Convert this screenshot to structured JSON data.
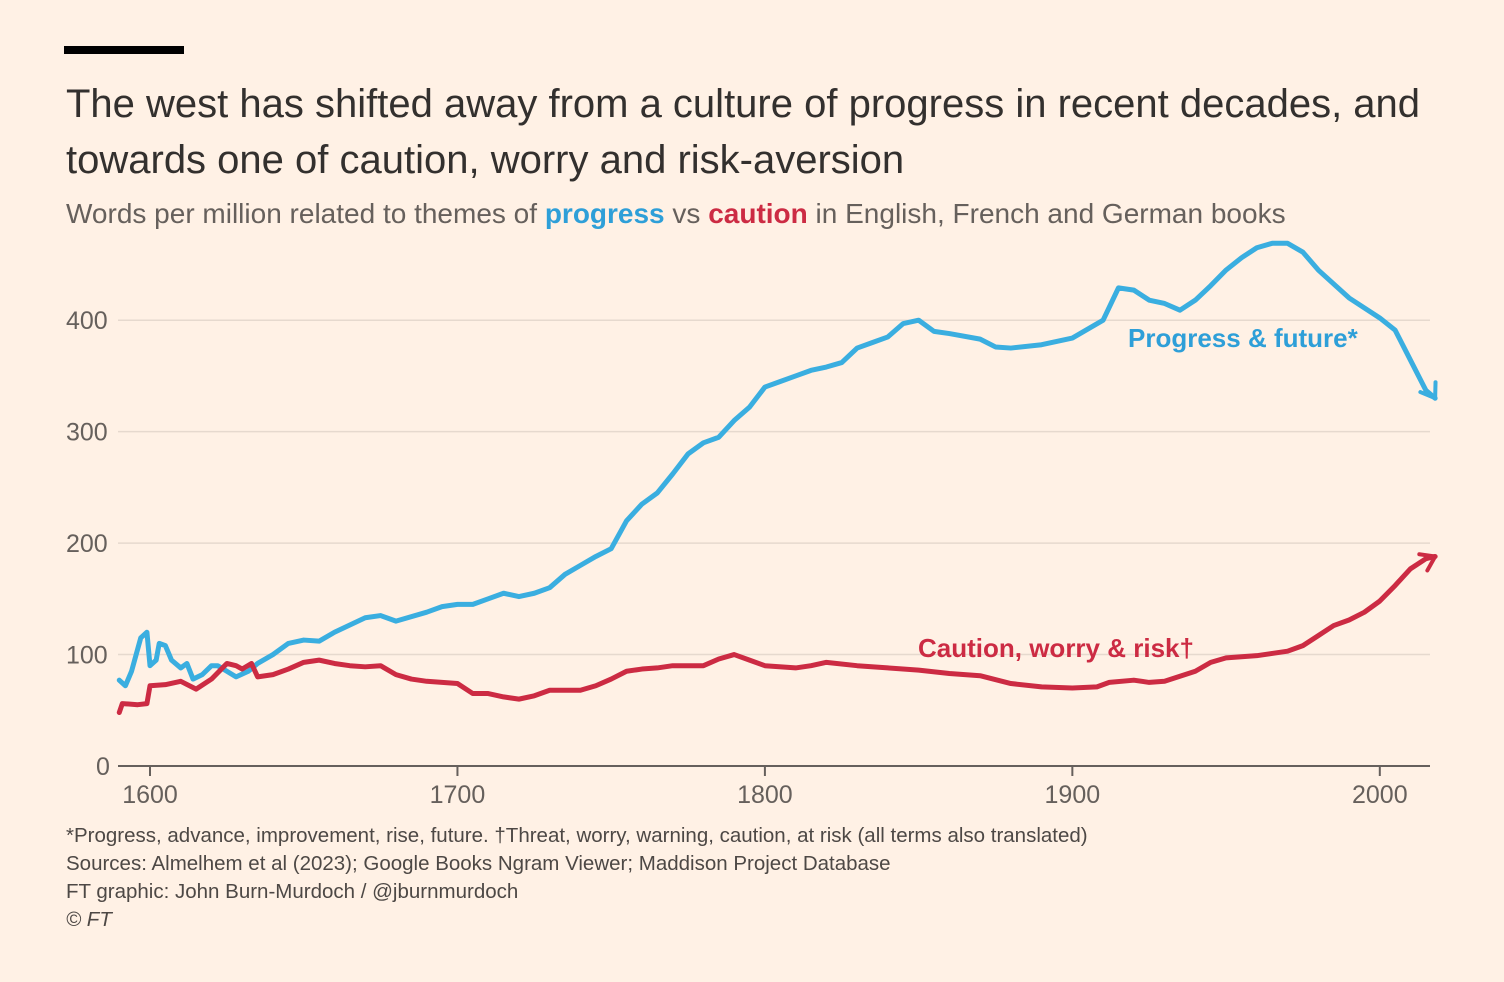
{
  "title": "The west has shifted away from a culture of progress in recent decades, and towards one of caution, worry and risk-aversion",
  "subtitle": {
    "before": "Words per million related to themes of ",
    "progress": "progress",
    "middle": " vs ",
    "caution": "caution",
    "after": " in English, French and German books"
  },
  "notes": {
    "footnote": "*Progress, advance, improvement, rise, future. †Threat, worry, warning, caution, at risk (all terms also translated)",
    "sources": "Sources: Almelhem et al (2023); Google Books Ngram Viewer; Maddison Project Database",
    "credit": "FT graphic: John Burn-Murdoch / @jburnmurdoch",
    "copyright": "© FT"
  },
  "colors": {
    "background": "#fff1e5",
    "progress": "#3aaee0",
    "caution": "#cc2b43",
    "grid": "#e6d9ce",
    "axis": "#66605c"
  },
  "chart_data": {
    "type": "line",
    "title": "The west has shifted away from a culture of progress in recent decades, and towards one of caution, worry and risk-aversion",
    "xlabel": "",
    "ylabel": "",
    "xlim": [
      1590,
      2018
    ],
    "ylim": [
      0,
      470
    ],
    "x_ticks": [
      1600,
      1700,
      1800,
      1900,
      2000
    ],
    "y_ticks": [
      0,
      100,
      200,
      300,
      400
    ],
    "grid": "horizontal",
    "series": [
      {
        "name": "Progress & future*",
        "color": "#3aaee0",
        "x": [
          1590,
          1592,
          1594,
          1597,
          1599,
          1600,
          1602,
          1603,
          1605,
          1607,
          1610,
          1612,
          1614,
          1617,
          1620,
          1622,
          1625,
          1628,
          1632,
          1635,
          1640,
          1645,
          1650,
          1655,
          1660,
          1670,
          1675,
          1680,
          1690,
          1695,
          1700,
          1705,
          1710,
          1715,
          1720,
          1725,
          1730,
          1735,
          1740,
          1745,
          1750,
          1755,
          1760,
          1765,
          1770,
          1775,
          1780,
          1785,
          1790,
          1795,
          1800,
          1805,
          1810,
          1815,
          1820,
          1825,
          1830,
          1835,
          1840,
          1845,
          1850,
          1855,
          1860,
          1870,
          1875,
          1880,
          1890,
          1900,
          1910,
          1915,
          1920,
          1925,
          1930,
          1935,
          1940,
          1945,
          1950,
          1955,
          1960,
          1965,
          1970,
          1975,
          1980,
          1990,
          2000,
          2005,
          2010,
          2015,
          2018
        ],
        "y": [
          77,
          72,
          85,
          115,
          120,
          90,
          95,
          110,
          108,
          95,
          88,
          92,
          78,
          82,
          90,
          90,
          85,
          80,
          85,
          92,
          100,
          110,
          113,
          112,
          120,
          133,
          135,
          130,
          138,
          143,
          145,
          145,
          150,
          155,
          152,
          155,
          160,
          172,
          180,
          188,
          195,
          220,
          235,
          245,
          262,
          280,
          290,
          295,
          310,
          322,
          340,
          345,
          350,
          355,
          358,
          362,
          375,
          380,
          385,
          397,
          400,
          390,
          388,
          383,
          376,
          375,
          378,
          384,
          400,
          429,
          427,
          418,
          415,
          409,
          418,
          431,
          445,
          456,
          465,
          469,
          469,
          461,
          445,
          420,
          402,
          391,
          364,
          337,
          330
        ]
      },
      {
        "name": "Caution, worry & risk†",
        "color": "#cc2b43",
        "x": [
          1590,
          1591,
          1596,
          1599,
          1600,
          1605,
          1610,
          1615,
          1620,
          1625,
          1628,
          1630,
          1633,
          1635,
          1640,
          1645,
          1650,
          1655,
          1660,
          1665,
          1670,
          1675,
          1680,
          1685,
          1690,
          1700,
          1705,
          1710,
          1715,
          1720,
          1725,
          1730,
          1740,
          1745,
          1750,
          1755,
          1760,
          1765,
          1770,
          1780,
          1785,
          1790,
          1795,
          1800,
          1810,
          1815,
          1820,
          1830,
          1840,
          1850,
          1860,
          1870,
          1880,
          1890,
          1900,
          1908,
          1912,
          1920,
          1925,
          1930,
          1940,
          1945,
          1950,
          1955,
          1960,
          1965,
          1970,
          1975,
          1980,
          1985,
          1990,
          1995,
          2000,
          2005,
          2010,
          2015,
          2018
        ],
        "y": [
          48,
          56,
          55,
          56,
          72,
          73,
          76,
          69,
          78,
          92,
          90,
          87,
          92,
          80,
          82,
          87,
          93,
          95,
          92,
          90,
          89,
          90,
          82,
          78,
          76,
          74,
          65,
          65,
          62,
          60,
          63,
          68,
          68,
          72,
          78,
          85,
          87,
          88,
          90,
          90,
          96,
          100,
          95,
          90,
          88,
          90,
          93,
          90,
          88,
          86,
          83,
          81,
          74,
          71,
          70,
          71,
          75,
          77,
          75,
          76,
          85,
          93,
          97,
          98,
          99,
          101,
          103,
          108,
          117,
          126,
          131,
          138,
          148,
          162,
          177,
          186,
          188
        ]
      }
    ],
    "annotations": [
      {
        "text": "Progress & future*",
        "series": "Progress & future*"
      },
      {
        "text": "Caution, worry & risk†",
        "series": "Caution, worry & risk†"
      }
    ]
  }
}
